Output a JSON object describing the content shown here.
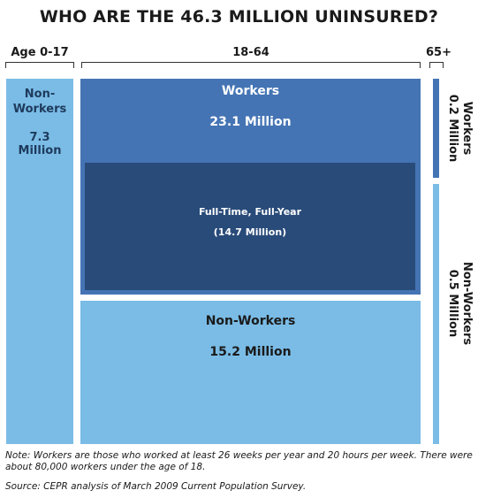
{
  "chart_data": {
    "type": "treemap",
    "title": "WHO ARE THE 46.3 MILLION UNINSURED?",
    "unit": "Million",
    "groups": [
      {
        "name": "Age 0-17",
        "segments": [
          {
            "name": "Non-Workers",
            "label": "7.3 Million",
            "value": 7.3,
            "color": "#7abce6"
          }
        ]
      },
      {
        "name": "18-64",
        "segments": [
          {
            "name": "Workers",
            "label": "23.1 Million",
            "value": 23.1,
            "color": "#4474b4",
            "subset": {
              "name": "Full-Time, Full-Year",
              "label": "(14.7 Million)",
              "value": 14.7,
              "color": "#294b79"
            }
          },
          {
            "name": "Non-Workers",
            "label": "15.2 Million",
            "value": 15.2,
            "color": "#7abce6"
          }
        ]
      },
      {
        "name": "65+",
        "segments": [
          {
            "name": "Workers",
            "label": "0.2 Million",
            "value": 0.2,
            "color": "#4474b4"
          },
          {
            "name": "Non-Workers",
            "label": "0.5 Million",
            "value": 0.5,
            "color": "#7abce6"
          }
        ]
      }
    ]
  },
  "note": "Note: Workers are those who worked at least 26 weeks per year and 20 hours per week. There were about 80,000 workers under the age of 18.",
  "source": "Source: CEPR analysis of March 2009 Current Population Survey."
}
